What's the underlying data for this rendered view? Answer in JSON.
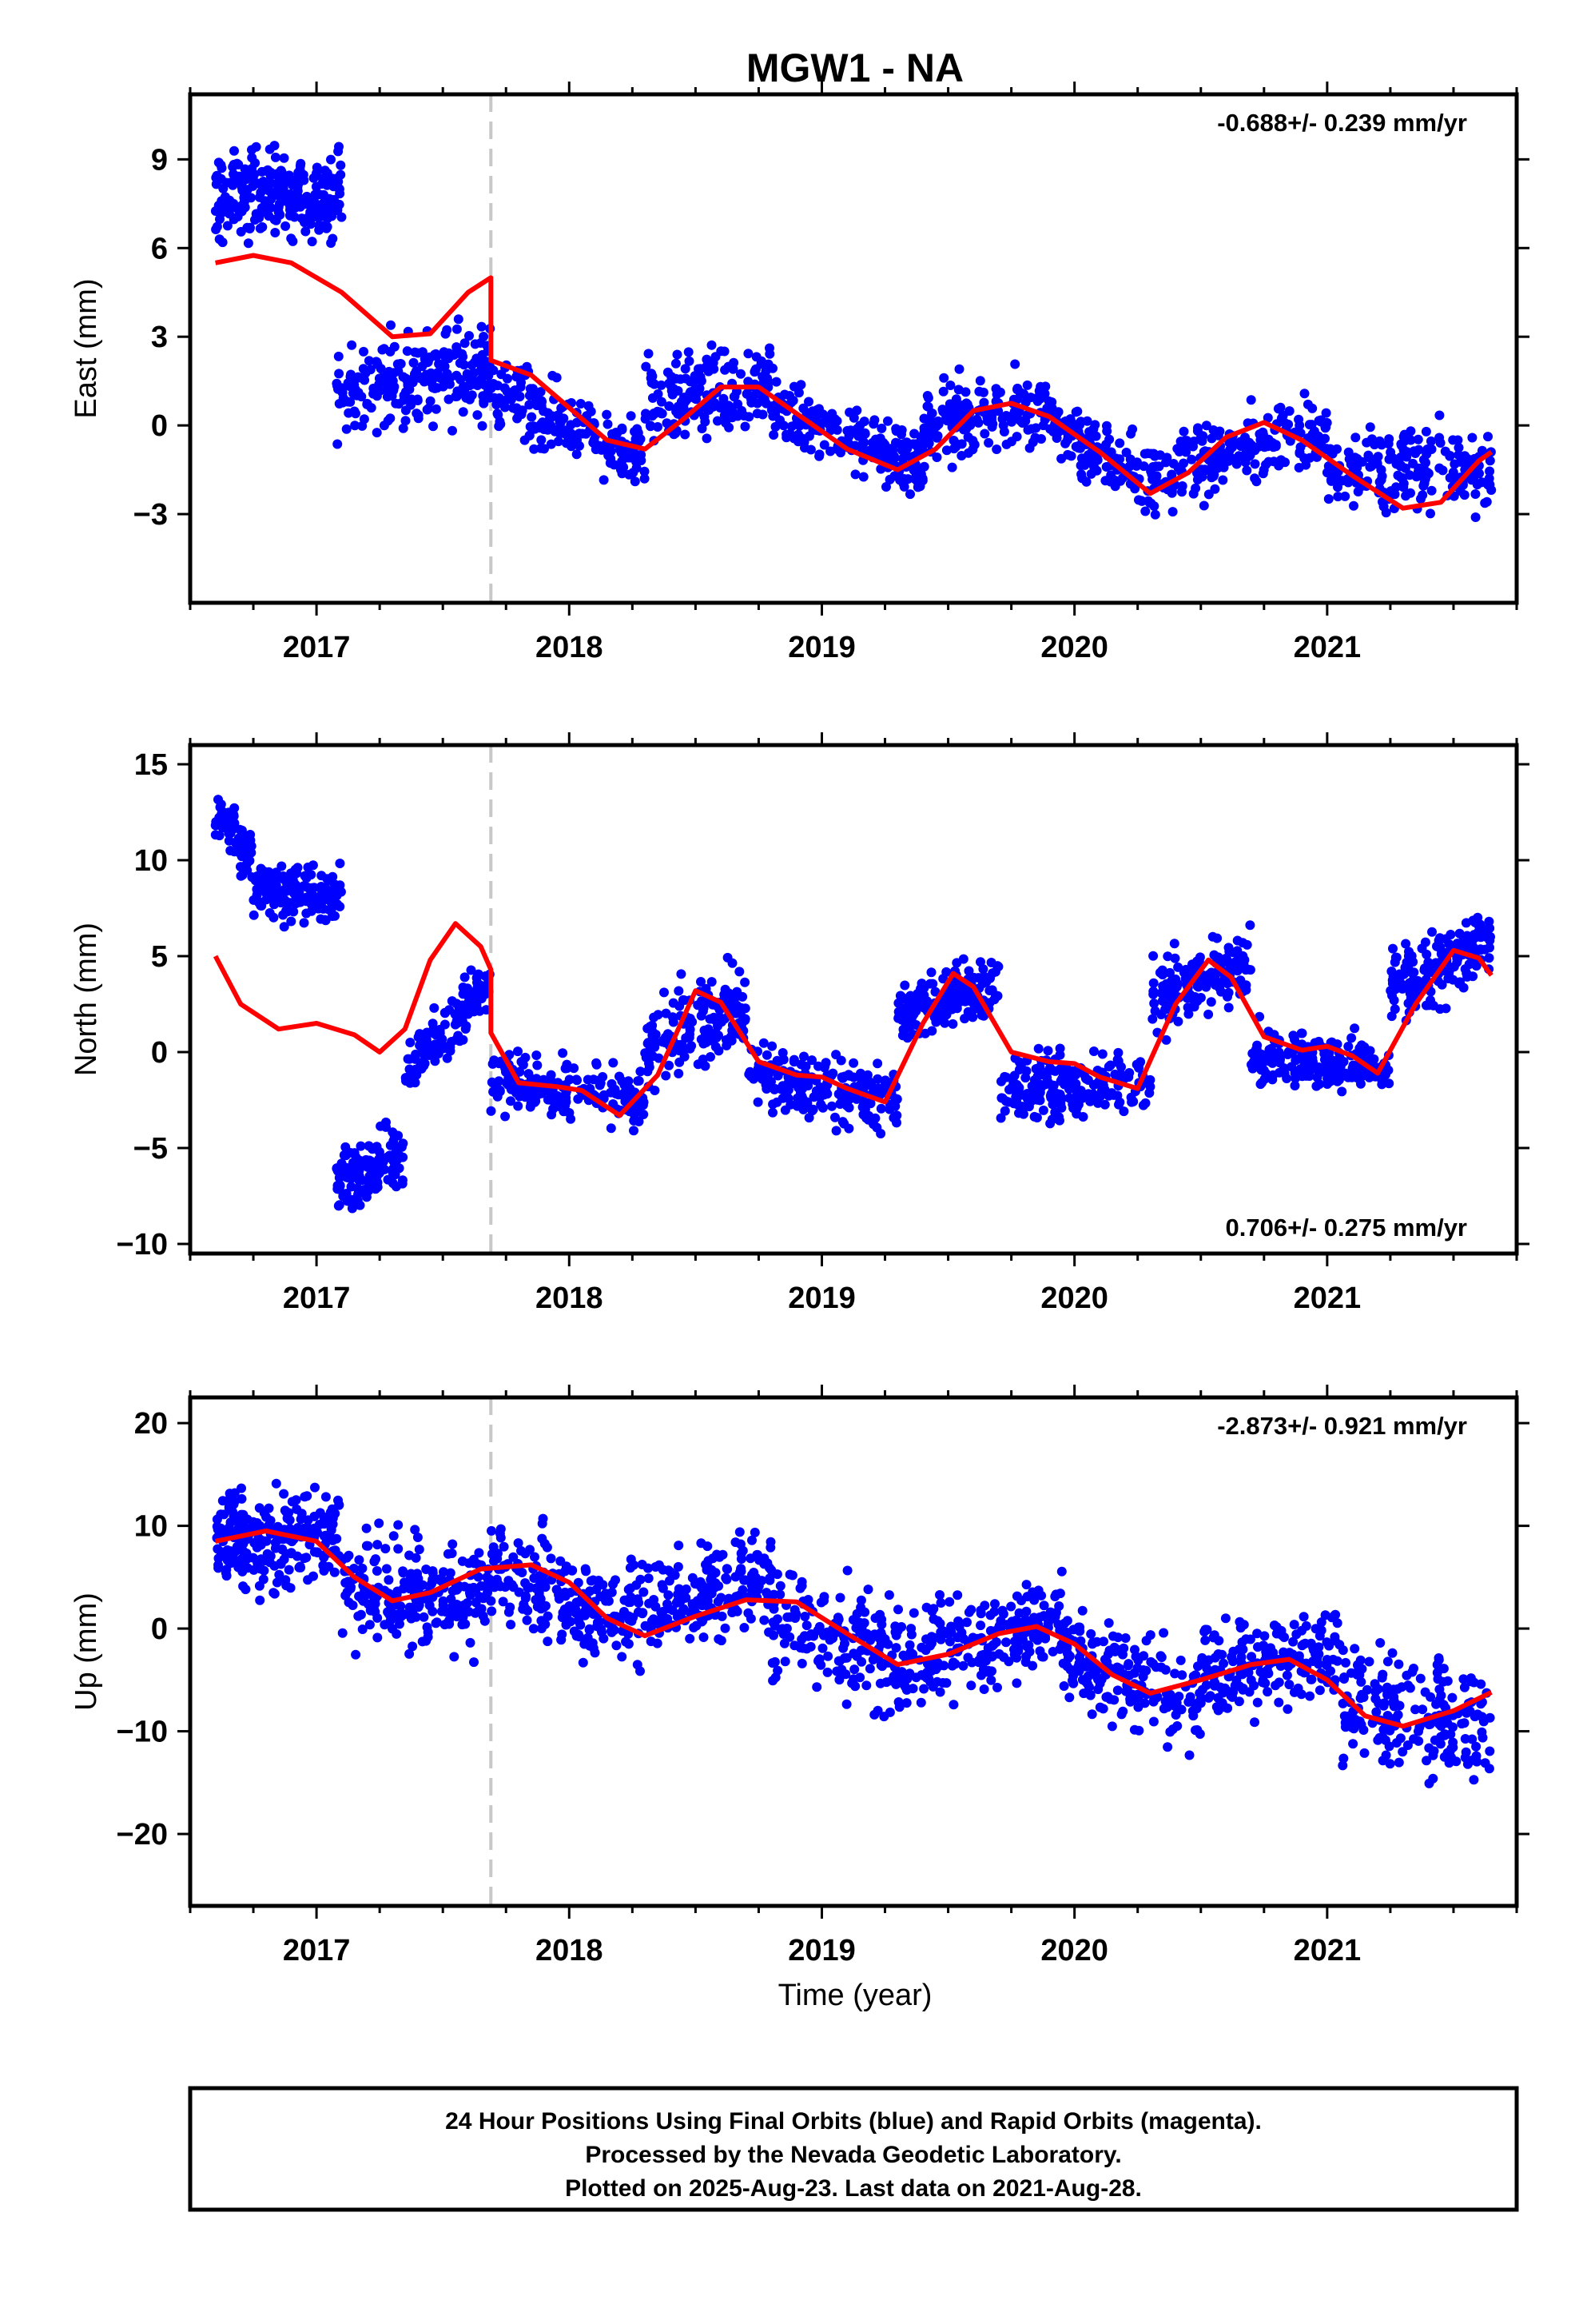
{
  "page": {
    "title": "MGW1 - NA",
    "xlabel": "Time (year)",
    "footer": [
      "24 Hour Positions Using Final Orbits (blue) and Rapid Orbits (magenta).",
      "Processed by the Nevada Geodetic Laboratory.",
      "Plotted on 2025-Aug-23. Last data on 2021-Aug-28."
    ],
    "colors": {
      "points": "#0000ff",
      "model": "#ff0000",
      "offset_line": "#c8c8c8"
    }
  },
  "chart_data": [
    {
      "type": "scatter",
      "component": "east",
      "ylabel": "East (mm)",
      "rate_label": "-0.688+/- 0.239 mm/yr",
      "rate_position": "top-right",
      "xlim": [
        2016.5,
        2021.75
      ],
      "ylim": [
        -6,
        11.2
      ],
      "x_ticks": [
        2017,
        2018,
        2019,
        2020,
        2021
      ],
      "y_ticks": [
        -3,
        0,
        3,
        6,
        9
      ],
      "offset_epoch": 2017.69,
      "model": [
        [
          2016.6,
          5.5
        ],
        [
          2016.75,
          5.75
        ],
        [
          2016.9,
          5.5
        ],
        [
          2017.1,
          4.5
        ],
        [
          2017.3,
          3.0
        ],
        [
          2017.45,
          3.1
        ],
        [
          2017.6,
          4.5
        ],
        [
          2017.69,
          5.0
        ],
        [
          2017.69,
          2.2
        ],
        [
          2017.85,
          1.7
        ],
        [
          2018.0,
          0.6
        ],
        [
          2018.15,
          -0.5
        ],
        [
          2018.3,
          -0.8
        ],
        [
          2018.45,
          0.2
        ],
        [
          2018.6,
          1.3
        ],
        [
          2018.75,
          1.3
        ],
        [
          2018.9,
          0.4
        ],
        [
          2019.1,
          -0.8
        ],
        [
          2019.3,
          -1.5
        ],
        [
          2019.45,
          -0.8
        ],
        [
          2019.6,
          0.5
        ],
        [
          2019.75,
          0.75
        ],
        [
          2019.9,
          0.3
        ],
        [
          2020.1,
          -0.9
        ],
        [
          2020.3,
          -2.3
        ],
        [
          2020.45,
          -1.6
        ],
        [
          2020.6,
          -0.4
        ],
        [
          2020.75,
          0.1
        ],
        [
          2020.9,
          -0.5
        ],
        [
          2021.1,
          -1.7
        ],
        [
          2021.3,
          -2.8
        ],
        [
          2021.45,
          -2.6
        ],
        [
          2021.6,
          -1.2
        ],
        [
          2021.65,
          -0.9
        ]
      ],
      "clusters": [
        {
          "x0": 2016.6,
          "x1": 2017.1,
          "y0": 7.8,
          "y1": 7.8,
          "spread": 1.2,
          "n": 260
        },
        {
          "x0": 2017.08,
          "x1": 2017.69,
          "y0": 1.0,
          "y1": 2.0,
          "spread": 1.3,
          "n": 230
        },
        {
          "x0": 2017.69,
          "x1": 2018.3,
          "y0": 1.0,
          "y1": -1.0,
          "spread": 1.0,
          "n": 200
        },
        {
          "x0": 2018.3,
          "x1": 2018.8,
          "y0": 0.8,
          "y1": 1.4,
          "spread": 1.1,
          "n": 170
        },
        {
          "x0": 2018.8,
          "x1": 2019.4,
          "y0": 0.6,
          "y1": -1.3,
          "spread": 1.0,
          "n": 200
        },
        {
          "x0": 2019.4,
          "x1": 2019.9,
          "y0": 0.0,
          "y1": 0.6,
          "spread": 1.0,
          "n": 170
        },
        {
          "x0": 2019.9,
          "x1": 2020.4,
          "y0": 0.1,
          "y1": -2.2,
          "spread": 0.9,
          "n": 170
        },
        {
          "x0": 2020.4,
          "x1": 2021.0,
          "y0": -1.4,
          "y1": -0.2,
          "spread": 1.0,
          "n": 190
        },
        {
          "x0": 2021.0,
          "x1": 2021.65,
          "y0": -1.5,
          "y1": -1.5,
          "spread": 1.1,
          "n": 210
        }
      ]
    },
    {
      "type": "scatter",
      "component": "north",
      "ylabel": "North (mm)",
      "rate_label": "0.706+/- 0.275 mm/yr",
      "rate_position": "bottom-right",
      "xlim": [
        2016.5,
        2021.75
      ],
      "ylim": [
        -10.5,
        16.0
      ],
      "x_ticks": [
        2017,
        2018,
        2019,
        2020,
        2021
      ],
      "y_ticks": [
        -10,
        -5,
        0,
        5,
        10,
        15
      ],
      "offset_epoch": 2017.69,
      "model": [
        [
          2016.6,
          5.0
        ],
        [
          2016.7,
          2.5
        ],
        [
          2016.85,
          1.2
        ],
        [
          2017.0,
          1.5
        ],
        [
          2017.15,
          0.9
        ],
        [
          2017.25,
          0.0
        ],
        [
          2017.35,
          1.2
        ],
        [
          2017.45,
          4.8
        ],
        [
          2017.55,
          6.7
        ],
        [
          2017.65,
          5.5
        ],
        [
          2017.69,
          4.3
        ],
        [
          2017.69,
          1.0
        ],
        [
          2017.8,
          -1.6
        ],
        [
          2017.95,
          -1.8
        ],
        [
          2018.05,
          -2.0
        ],
        [
          2018.2,
          -3.3
        ],
        [
          2018.35,
          -1.2
        ],
        [
          2018.5,
          3.2
        ],
        [
          2018.6,
          2.6
        ],
        [
          2018.75,
          -0.5
        ],
        [
          2018.9,
          -1.2
        ],
        [
          2019.0,
          -1.3
        ],
        [
          2019.1,
          -1.9
        ],
        [
          2019.25,
          -2.6
        ],
        [
          2019.4,
          1.5
        ],
        [
          2019.52,
          4.1
        ],
        [
          2019.6,
          3.4
        ],
        [
          2019.75,
          0.0
        ],
        [
          2019.9,
          -0.5
        ],
        [
          2020.0,
          -0.6
        ],
        [
          2020.1,
          -1.3
        ],
        [
          2020.25,
          -1.9
        ],
        [
          2020.4,
          2.5
        ],
        [
          2020.53,
          4.8
        ],
        [
          2020.62,
          3.9
        ],
        [
          2020.75,
          0.8
        ],
        [
          2020.9,
          0.1
        ],
        [
          2021.0,
          0.3
        ],
        [
          2021.1,
          -0.2
        ],
        [
          2021.2,
          -1.1
        ],
        [
          2021.35,
          2.5
        ],
        [
          2021.5,
          5.3
        ],
        [
          2021.6,
          4.9
        ],
        [
          2021.65,
          4.0
        ]
      ],
      "clusters": [
        {
          "x0": 2016.6,
          "x1": 2016.75,
          "y0": 12.5,
          "y1": 10.0,
          "spread": 1.1,
          "n": 70
        },
        {
          "x0": 2016.75,
          "x1": 2017.1,
          "y0": 8.5,
          "y1": 8.2,
          "spread": 1.2,
          "n": 170
        },
        {
          "x0": 2017.08,
          "x1": 2017.35,
          "y0": -6.8,
          "y1": -5.5,
          "spread": 1.3,
          "n": 140
        },
        {
          "x0": 2017.35,
          "x1": 2017.69,
          "y0": -1.0,
          "y1": 3.8,
          "spread": 1.3,
          "n": 130
        },
        {
          "x0": 2017.69,
          "x1": 2018.3,
          "y0": -1.5,
          "y1": -2.5,
          "spread": 1.3,
          "n": 200
        },
        {
          "x0": 2018.3,
          "x1": 2018.7,
          "y0": 0.0,
          "y1": 2.5,
          "spread": 1.8,
          "n": 160
        },
        {
          "x0": 2018.7,
          "x1": 2019.3,
          "y0": -1.0,
          "y1": -2.5,
          "spread": 1.4,
          "n": 200
        },
        {
          "x0": 2019.3,
          "x1": 2019.7,
          "y0": 2.0,
          "y1": 3.5,
          "spread": 1.4,
          "n": 160
        },
        {
          "x0": 2019.7,
          "x1": 2020.3,
          "y0": -2.0,
          "y1": -1.5,
          "spread": 1.4,
          "n": 200
        },
        {
          "x0": 2020.3,
          "x1": 2020.7,
          "y0": 3.0,
          "y1": 4.5,
          "spread": 1.6,
          "n": 160
        },
        {
          "x0": 2020.7,
          "x1": 2021.25,
          "y0": 0.0,
          "y1": -1.0,
          "spread": 1.1,
          "n": 200
        },
        {
          "x0": 2021.25,
          "x1": 2021.65,
          "y0": 3.0,
          "y1": 6.0,
          "spread": 1.6,
          "n": 170
        }
      ]
    },
    {
      "type": "scatter",
      "component": "up",
      "ylabel": "Up (mm)",
      "rate_label": "-2.873+/- 0.921 mm/yr",
      "rate_position": "top-right",
      "xlim": [
        2016.5,
        2021.75
      ],
      "ylim": [
        -27,
        22.5
      ],
      "x_ticks": [
        2017,
        2018,
        2019,
        2020,
        2021
      ],
      "y_ticks": [
        -20,
        -10,
        0,
        10,
        20
      ],
      "offset_epoch": 2017.69,
      "model": [
        [
          2016.6,
          8.5
        ],
        [
          2016.8,
          9.5
        ],
        [
          2017.0,
          8.5
        ],
        [
          2017.15,
          5.0
        ],
        [
          2017.3,
          2.7
        ],
        [
          2017.45,
          3.5
        ],
        [
          2017.65,
          5.8
        ],
        [
          2017.85,
          6.2
        ],
        [
          2018.0,
          4.5
        ],
        [
          2018.15,
          1.0
        ],
        [
          2018.3,
          -0.7
        ],
        [
          2018.5,
          1.2
        ],
        [
          2018.7,
          2.8
        ],
        [
          2018.9,
          2.6
        ],
        [
          2019.1,
          -0.5
        ],
        [
          2019.3,
          -3.5
        ],
        [
          2019.5,
          -2.5
        ],
        [
          2019.7,
          -0.5
        ],
        [
          2019.85,
          0.2
        ],
        [
          2020.0,
          -1.5
        ],
        [
          2020.15,
          -4.5
        ],
        [
          2020.3,
          -6.3
        ],
        [
          2020.5,
          -5.0
        ],
        [
          2020.7,
          -3.5
        ],
        [
          2020.85,
          -3.0
        ],
        [
          2021.0,
          -5.0
        ],
        [
          2021.15,
          -8.5
        ],
        [
          2021.3,
          -9.5
        ],
        [
          2021.5,
          -8.0
        ],
        [
          2021.65,
          -6.2
        ]
      ],
      "clusters": [
        {
          "x0": 2016.6,
          "x1": 2017.1,
          "y0": 8.5,
          "y1": 9.0,
          "spread": 4.0,
          "n": 230
        },
        {
          "x0": 2017.1,
          "x1": 2017.69,
          "y0": 4.0,
          "y1": 3.0,
          "spread": 4.5,
          "n": 220
        },
        {
          "x0": 2017.69,
          "x1": 2018.2,
          "y0": 6.0,
          "y1": 1.0,
          "spread": 4.0,
          "n": 190
        },
        {
          "x0": 2018.2,
          "x1": 2018.8,
          "y0": 2.0,
          "y1": 4.5,
          "spread": 4.2,
          "n": 210
        },
        {
          "x0": 2018.8,
          "x1": 2019.4,
          "y0": 1.0,
          "y1": -4.0,
          "spread": 4.5,
          "n": 200
        },
        {
          "x0": 2019.4,
          "x1": 2019.95,
          "y0": -2.0,
          "y1": 0.5,
          "spread": 4.0,
          "n": 190
        },
        {
          "x0": 2019.95,
          "x1": 2020.5,
          "y0": -3.0,
          "y1": -7.0,
          "spread": 4.0,
          "n": 190
        },
        {
          "x0": 2020.5,
          "x1": 2021.05,
          "y0": -4.5,
          "y1": -2.0,
          "spread": 3.8,
          "n": 190
        },
        {
          "x0": 2021.05,
          "x1": 2021.65,
          "y0": -7.0,
          "y1": -9.0,
          "spread": 4.5,
          "n": 200
        }
      ]
    }
  ]
}
